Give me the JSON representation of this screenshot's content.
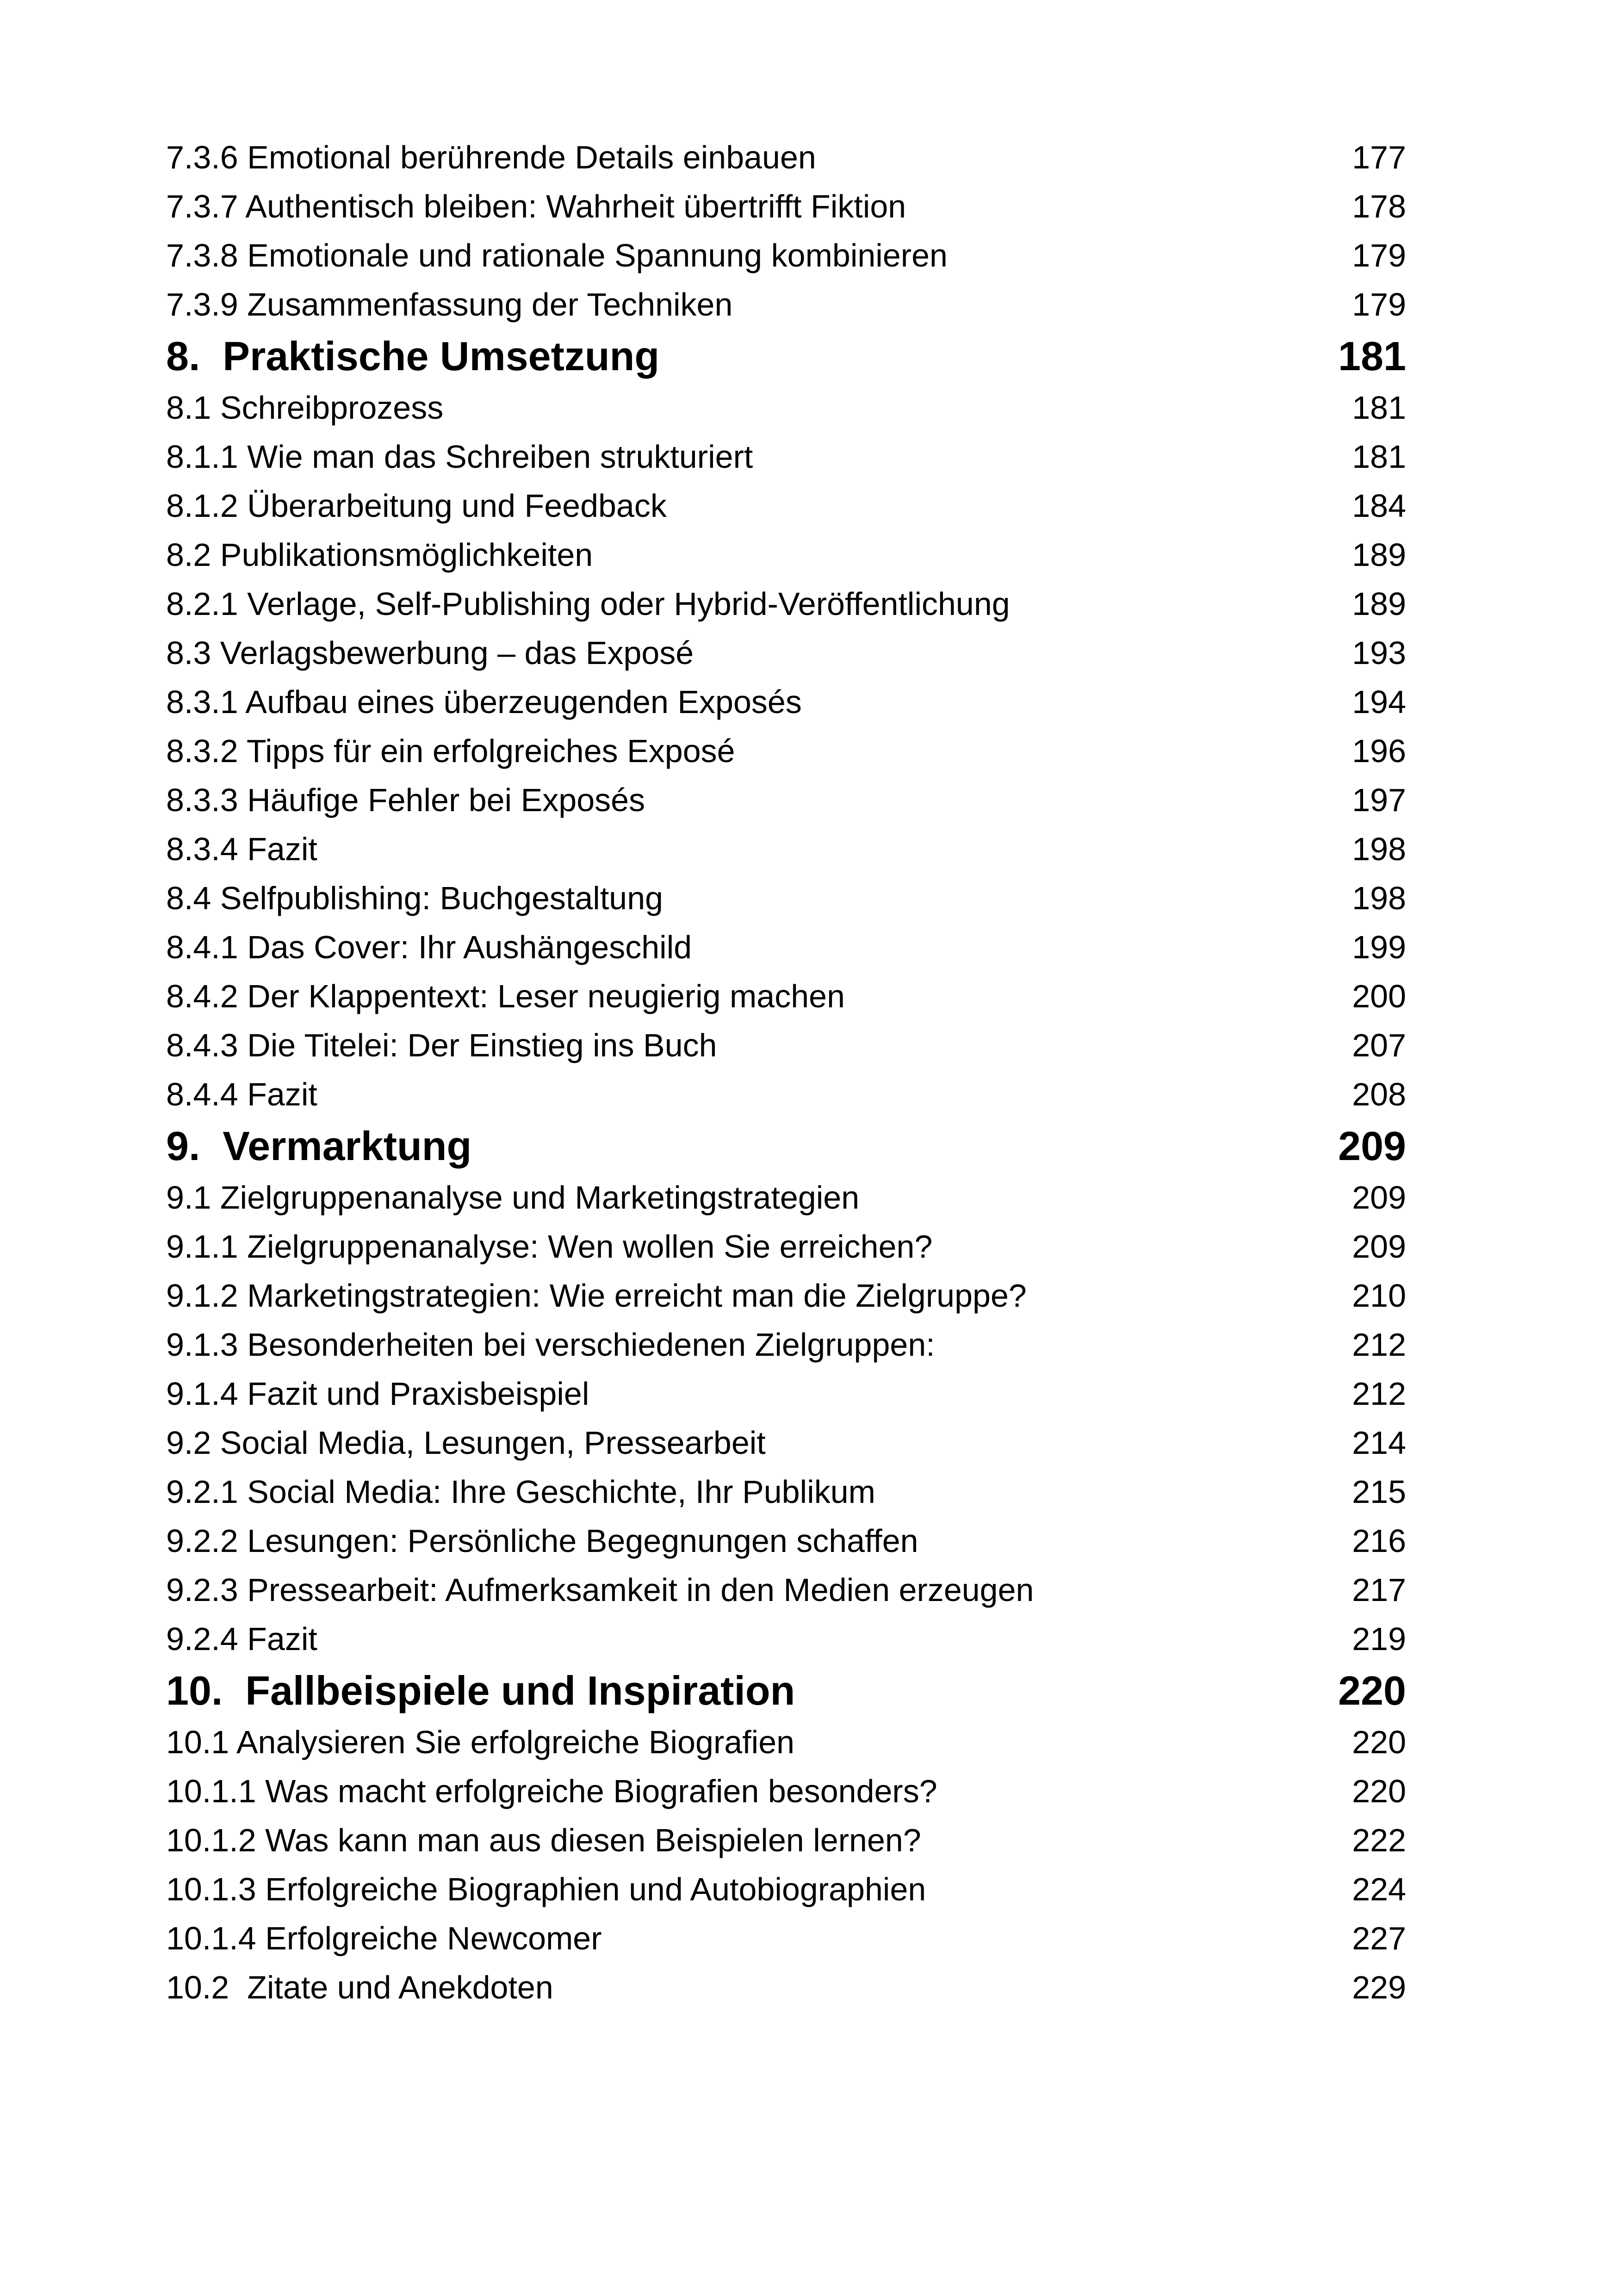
{
  "toc": {
    "entries": [
      {
        "title": "7.3.6 Emotional berührende Details einbauen",
        "page": "177",
        "level": "sub"
      },
      {
        "title": "7.3.7 Authentisch bleiben: Wahrheit übertrifft Fiktion",
        "page": "178",
        "level": "sub"
      },
      {
        "title": "7.3.8 Emotionale und rationale Spannung kombinieren",
        "page": "179",
        "level": "sub"
      },
      {
        "title": "7.3.9 Zusammenfassung der Techniken",
        "page": "179",
        "level": "sub"
      },
      {
        "title": "8.  Praktische Umsetzung",
        "page": "181",
        "level": "chapter"
      },
      {
        "title": "8.1 Schreibprozess",
        "page": "181",
        "level": "sub"
      },
      {
        "title": "8.1.1 Wie man das Schreiben strukturiert",
        "page": "181",
        "level": "sub"
      },
      {
        "title": "8.1.2 Überarbeitung und Feedback",
        "page": "184",
        "level": "sub"
      },
      {
        "title": "8.2 Publikationsmöglichkeiten",
        "page": "189",
        "level": "sub"
      },
      {
        "title": "8.2.1 Verlage, Self-Publishing oder Hybrid-Veröffentlichung",
        "page": "189",
        "level": "sub"
      },
      {
        "title": "8.3 Verlagsbewerbung – das Exposé",
        "page": "193",
        "level": "sub"
      },
      {
        "title": "8.3.1 Aufbau eines überzeugenden Exposés",
        "page": "194",
        "level": "sub"
      },
      {
        "title": "8.3.2 Tipps für ein erfolgreiches Exposé",
        "page": "196",
        "level": "sub"
      },
      {
        "title": "8.3.3 Häufige Fehler bei Exposés",
        "page": "197",
        "level": "sub"
      },
      {
        "title": "8.3.4 Fazit",
        "page": "198",
        "level": "sub"
      },
      {
        "title": "8.4 Selfpublishing: Buchgestaltung",
        "page": "198",
        "level": "sub"
      },
      {
        "title": "8.4.1 Das Cover: Ihr Aushängeschild",
        "page": "199",
        "level": "sub"
      },
      {
        "title": "8.4.2 Der Klappentext: Leser neugierig machen",
        "page": "200",
        "level": "sub"
      },
      {
        "title": "8.4.3 Die Titelei: Der Einstieg ins Buch",
        "page": "207",
        "level": "sub"
      },
      {
        "title": "8.4.4 Fazit",
        "page": "208",
        "level": "sub"
      },
      {
        "title": "9.  Vermarktung",
        "page": "209",
        "level": "chapter"
      },
      {
        "title": "9.1 Zielgruppenanalyse und Marketingstrategien",
        "page": "209",
        "level": "sub"
      },
      {
        "title": "9.1.1 Zielgruppenanalyse: Wen wollen Sie erreichen?",
        "page": "209",
        "level": "sub"
      },
      {
        "title": "9.1.2 Marketingstrategien: Wie erreicht man die Zielgruppe?",
        "page": "210",
        "level": "sub"
      },
      {
        "title": "9.1.3 Besonderheiten bei verschiedenen Zielgruppen:",
        "page": "212",
        "level": "sub"
      },
      {
        "title": "9.1.4 Fazit und Praxisbeispiel",
        "page": "212",
        "level": "sub"
      },
      {
        "title": "9.2 Social Media, Lesungen, Pressearbeit",
        "page": "214",
        "level": "sub"
      },
      {
        "title": "9.2.1 Social Media: Ihre Geschichte, Ihr Publikum",
        "page": "215",
        "level": "sub"
      },
      {
        "title": "9.2.2 Lesungen: Persönliche Begegnungen schaffen",
        "page": "216",
        "level": "sub"
      },
      {
        "title": "9.2.3 Pressearbeit: Aufmerksamkeit in den Medien erzeugen",
        "page": "217",
        "level": "sub"
      },
      {
        "title": "9.2.4 Fazit",
        "page": "219",
        "level": "sub"
      },
      {
        "title": "10.  Fallbeispiele und Inspiration",
        "page": "220",
        "level": "chapter"
      },
      {
        "title": "10.1 Analysieren Sie erfolgreiche Biografien",
        "page": "220",
        "level": "sub"
      },
      {
        "title": "10.1.1 Was macht erfolgreiche Biografien besonders?",
        "page": "220",
        "level": "sub"
      },
      {
        "title": "10.1.2 Was kann man aus diesen Beispielen lernen?",
        "page": "222",
        "level": "sub"
      },
      {
        "title": "10.1.3 Erfolgreiche Biographien und Autobiographien",
        "page": "224",
        "level": "sub"
      },
      {
        "title": "10.1.4 Erfolgreiche Newcomer",
        "page": "227",
        "level": "sub"
      },
      {
        "title": "10.2  Zitate und Anekdoten",
        "page": "229",
        "level": "sub"
      }
    ]
  }
}
